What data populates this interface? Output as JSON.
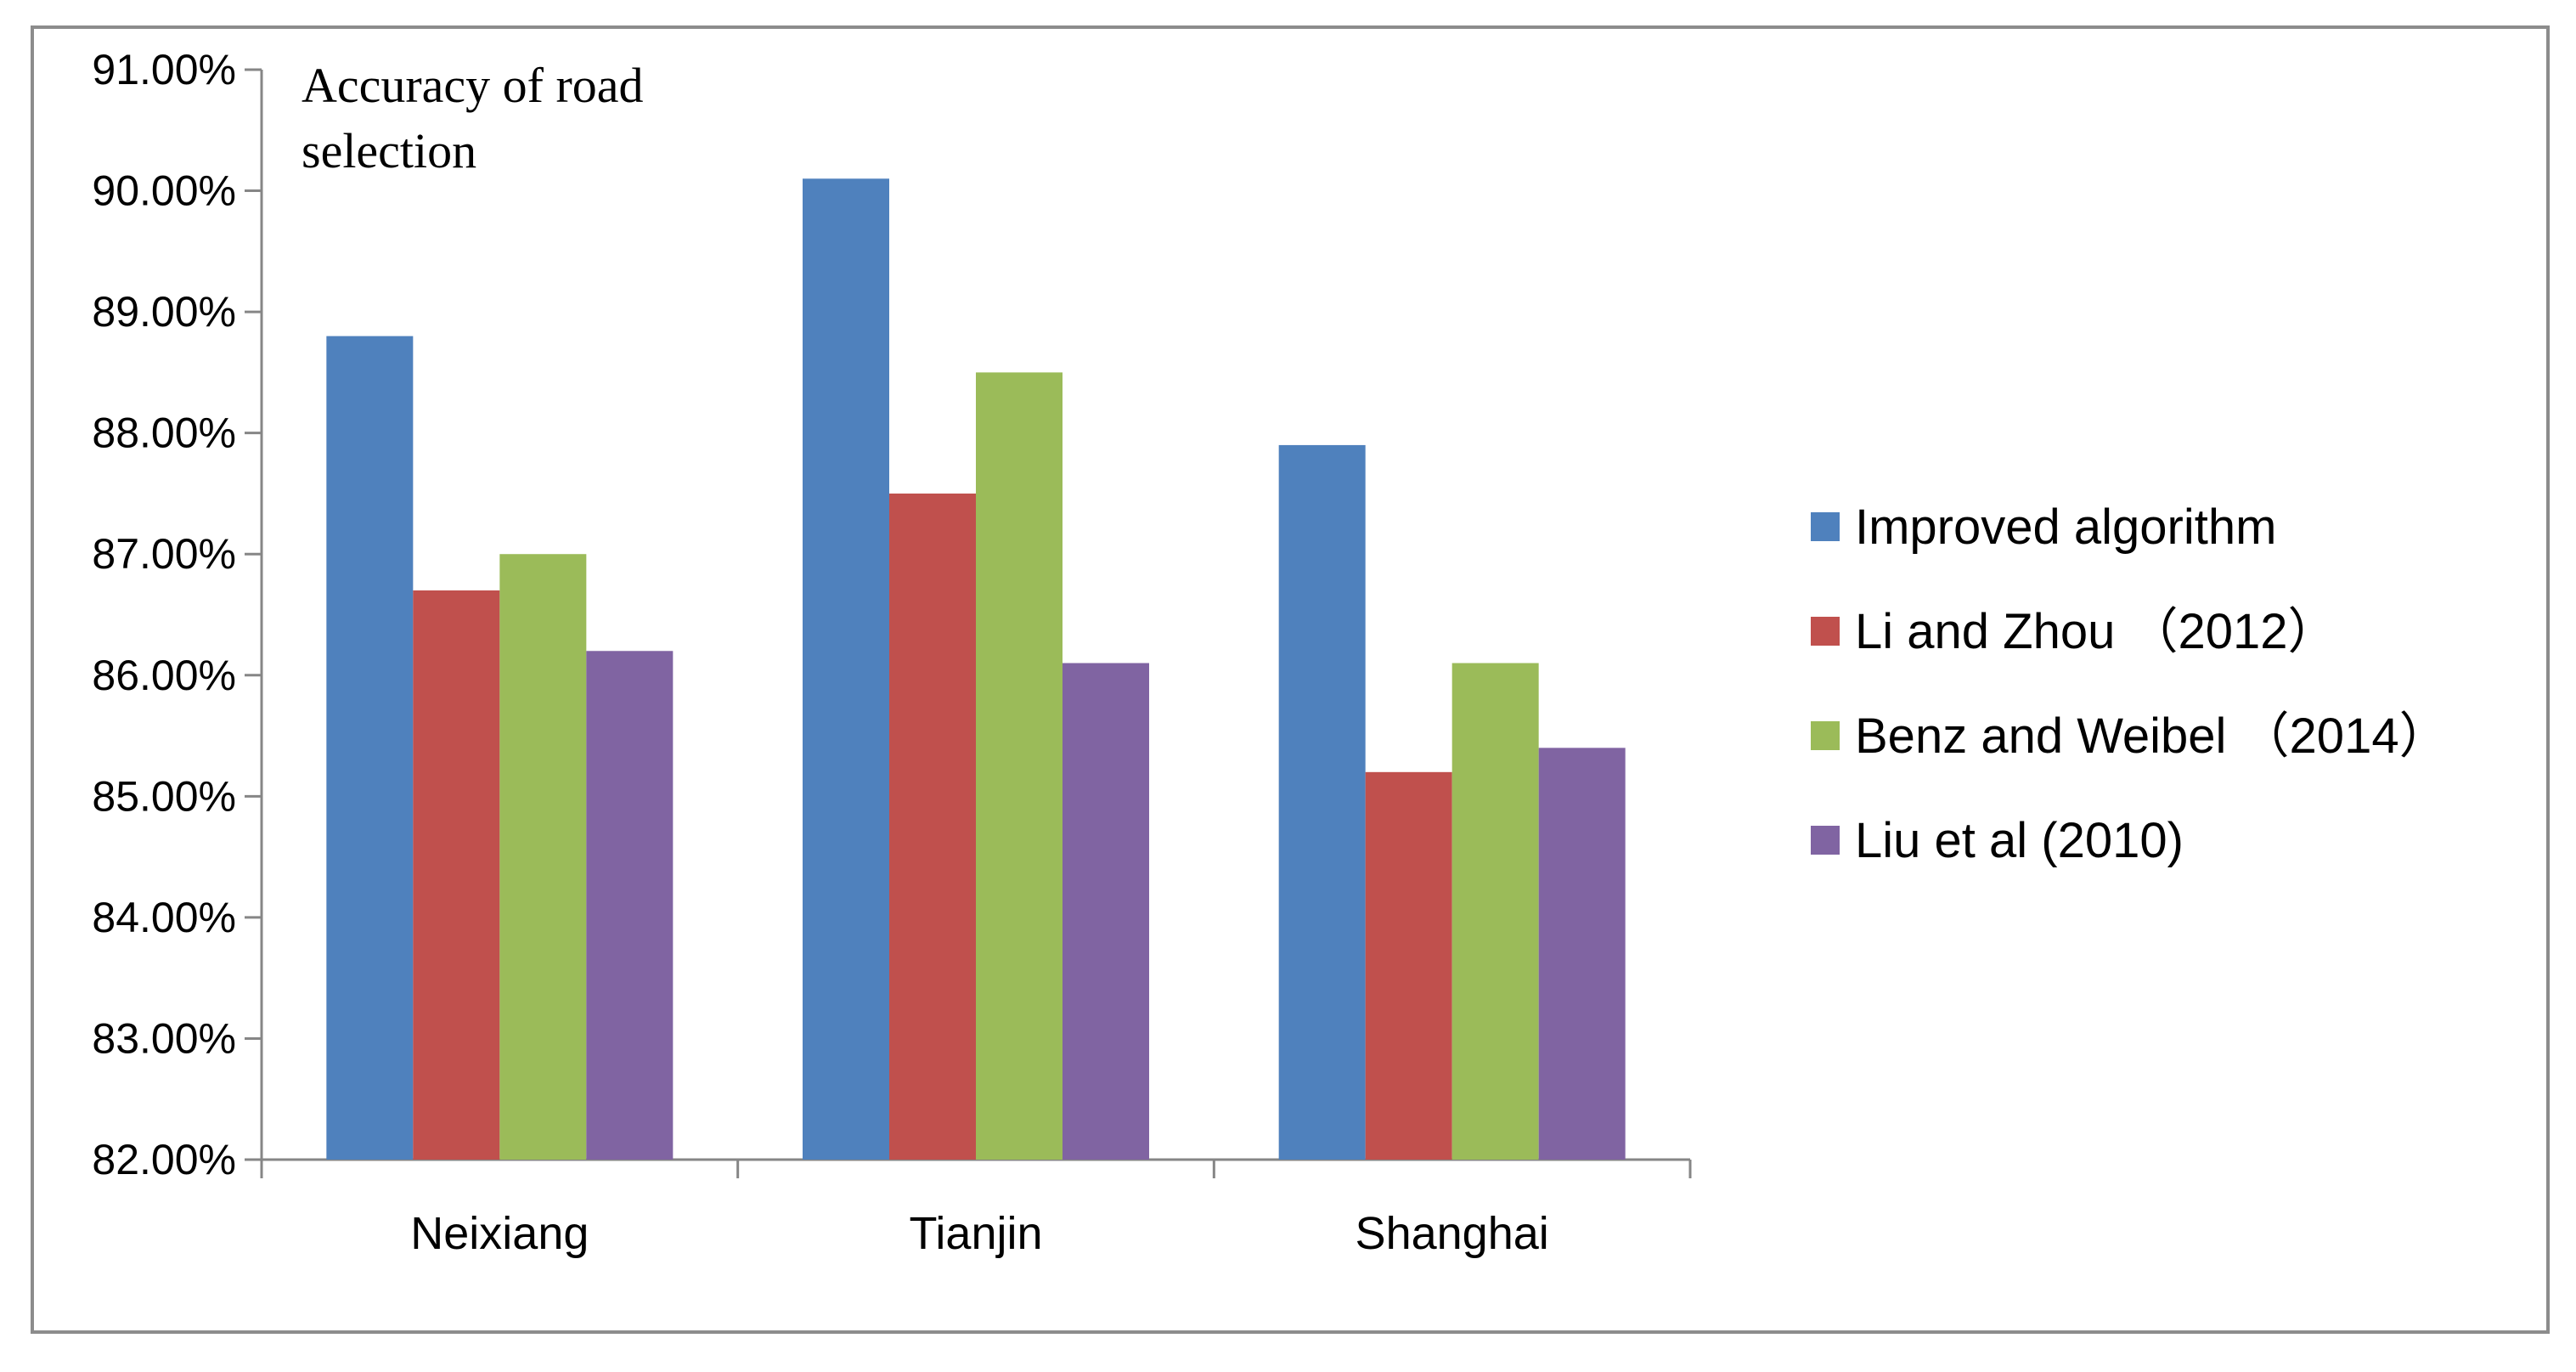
{
  "chart_data": {
    "type": "bar",
    "title_lines": [
      "Accuracy   of road",
      "selection"
    ],
    "categories": [
      "Neixiang",
      "Tianjin",
      "Shanghai"
    ],
    "series": [
      {
        "name": "Improved algorithm",
        "color": "#4F81BD",
        "values": [
          0.888,
          0.901,
          0.879
        ]
      },
      {
        "name": "Li and Zhou （2012）",
        "color": "#C0504D",
        "values": [
          0.867,
          0.875,
          0.852
        ]
      },
      {
        "name": "Benz and Weibel （2014）",
        "color": "#9BBB59",
        "values": [
          0.87,
          0.885,
          0.861
        ]
      },
      {
        "name": "Liu et al (2010)",
        "color": "#8064A2",
        "values": [
          0.862,
          0.861,
          0.854
        ]
      }
    ],
    "yticks": [
      "82.00%",
      "83.00%",
      "84.00%",
      "85.00%",
      "86.00%",
      "87.00%",
      "88.00%",
      "89.00%",
      "90.00%",
      "91.00%"
    ],
    "ylim": [
      0.82,
      0.91
    ],
    "grid": false,
    "legend_position": "right"
  }
}
